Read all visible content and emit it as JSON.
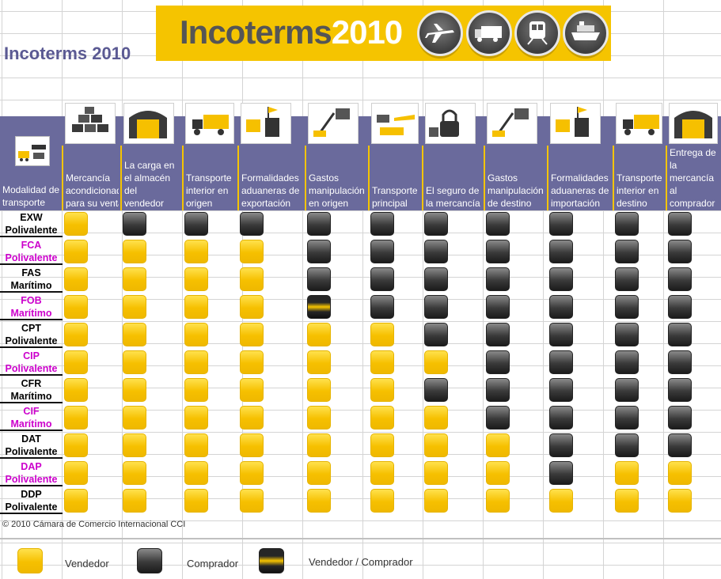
{
  "banner": {
    "title_part1": "Incoterms",
    "title_part2": "2010"
  },
  "sheet_title": "Incoterms 2010",
  "corner_label": "Modalidad de transporte",
  "columns": [
    "Mercancía acondicionada para su venta",
    "La carga en el almacén del vendedor",
    "Transporte interior en origen",
    "Formalidades aduaneras de exportación",
    "Gastos manipulación en origen",
    "Transporte principal",
    "El seguro de la mercancía",
    "Gastos manipulación de destino",
    "Formalidades aduaneras de importación",
    "Transporte interior en destino",
    "Entrega de la mercancía al comprador"
  ],
  "rows": [
    {
      "code": "EXW",
      "mode": "Polivalente",
      "cells": [
        "V",
        "C",
        "C",
        "C",
        "C",
        "C",
        "C",
        "C",
        "C",
        "C",
        "C"
      ]
    },
    {
      "code": "FCA",
      "mode": "Polivalente",
      "cells": [
        "V",
        "V",
        "V",
        "V",
        "C",
        "C",
        "C",
        "C",
        "C",
        "C",
        "C"
      ]
    },
    {
      "code": "FAS",
      "mode": "Marítimo",
      "cells": [
        "V",
        "V",
        "V",
        "V",
        "C",
        "C",
        "C",
        "C",
        "C",
        "C",
        "C"
      ]
    },
    {
      "code": "FOB",
      "mode": "Marítimo",
      "cells": [
        "V",
        "V",
        "V",
        "V",
        "VC",
        "C",
        "C",
        "C",
        "C",
        "C",
        "C"
      ]
    },
    {
      "code": "CPT",
      "mode": "Polivalente",
      "cells": [
        "V",
        "V",
        "V",
        "V",
        "V",
        "V",
        "C",
        "C",
        "C",
        "C",
        "C"
      ]
    },
    {
      "code": "CIP",
      "mode": "Polivalente",
      "cells": [
        "V",
        "V",
        "V",
        "V",
        "V",
        "V",
        "V",
        "C",
        "C",
        "C",
        "C"
      ]
    },
    {
      "code": "CFR",
      "mode": "Marítimo",
      "cells": [
        "V",
        "V",
        "V",
        "V",
        "V",
        "V",
        "C",
        "C",
        "C",
        "C",
        "C"
      ]
    },
    {
      "code": "CIF",
      "mode": "Marítimo",
      "cells": [
        "V",
        "V",
        "V",
        "V",
        "V",
        "V",
        "V",
        "C",
        "C",
        "C",
        "C"
      ]
    },
    {
      "code": "DAT",
      "mode": "Polivalente",
      "cells": [
        "V",
        "V",
        "V",
        "V",
        "V",
        "V",
        "V",
        "V",
        "C",
        "C",
        "C"
      ]
    },
    {
      "code": "DAP",
      "mode": "Polivalente",
      "cells": [
        "V",
        "V",
        "V",
        "V",
        "V",
        "V",
        "V",
        "V",
        "C",
        "V",
        "V"
      ]
    },
    {
      "code": "DDP",
      "mode": "Polivalente",
      "cells": [
        "V",
        "V",
        "V",
        "V",
        "V",
        "V",
        "V",
        "V",
        "V",
        "V",
        "V"
      ]
    }
  ],
  "copyright": "© 2010 Cámara de Comercio Internacional CCI",
  "legend": {
    "vendedor": "Vendedor",
    "comprador": "Comprador",
    "ambos": "Vendedor / Comprador"
  },
  "colors": {
    "seller": "#f6c000",
    "buyer": "#333333",
    "header_band": "#6a6a9c",
    "banner": "#f5c400",
    "alt_term": "#cc00cc"
  },
  "icons": {
    "banner": [
      "plane-icon",
      "truck-icon",
      "train-icon",
      "ship-icon"
    ],
    "columns": [
      "boxes-icon",
      "warehouse-icon",
      "truck-icon",
      "customs-flag-icon",
      "crane-icon",
      "forklift-plane-icon",
      "padlock-icon",
      "crane-icon",
      "customs-flag-icon",
      "truck-icon",
      "warehouse-icon"
    ]
  }
}
